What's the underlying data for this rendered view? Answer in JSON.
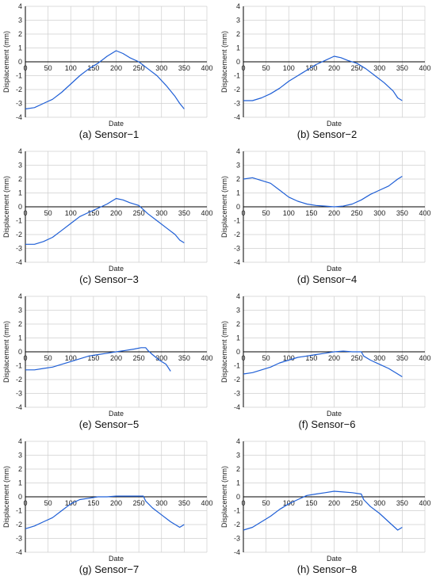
{
  "chart_data": [
    {
      "type": "line",
      "caption": "(a) Sensor−1",
      "xlabel": "Date",
      "ylabel": "Displacement (mm)",
      "xlim": [
        0,
        400
      ],
      "ylim": [
        -4,
        4
      ],
      "xticks": [
        0,
        50,
        100,
        150,
        200,
        250,
        300,
        350,
        400
      ],
      "yticks": [
        4,
        3,
        2,
        1,
        0,
        -1,
        -2,
        -3,
        -4
      ],
      "grid": true,
      "series": [
        {
          "x": [
            0,
            20,
            40,
            60,
            80,
            100,
            120,
            140,
            160,
            180,
            200,
            215,
            230,
            250,
            270,
            290,
            310,
            330,
            340,
            350
          ],
          "y": [
            -3.4,
            -3.3,
            -3.0,
            -2.7,
            -2.2,
            -1.6,
            -1.0,
            -0.5,
            -0.1,
            0.4,
            0.8,
            0.6,
            0.3,
            0.0,
            -0.5,
            -1.0,
            -1.7,
            -2.5,
            -3.0,
            -3.4
          ]
        }
      ]
    },
    {
      "type": "line",
      "caption": "(b) Sensor−2",
      "xlabel": "Date",
      "ylabel": "Displacement (mm)",
      "xlim": [
        0,
        400
      ],
      "ylim": [
        -4,
        4
      ],
      "xticks": [
        0,
        50,
        100,
        150,
        200,
        250,
        300,
        350,
        400
      ],
      "yticks": [
        4,
        3,
        2,
        1,
        0,
        -1,
        -2,
        -3,
        -4
      ],
      "grid": true,
      "series": [
        {
          "x": [
            0,
            20,
            40,
            60,
            80,
            100,
            120,
            140,
            160,
            180,
            200,
            215,
            230,
            250,
            270,
            290,
            310,
            330,
            340,
            350
          ],
          "y": [
            -2.8,
            -2.8,
            -2.6,
            -2.3,
            -1.9,
            -1.4,
            -1.0,
            -0.6,
            -0.2,
            0.1,
            0.4,
            0.3,
            0.1,
            -0.1,
            -0.5,
            -1.0,
            -1.5,
            -2.1,
            -2.6,
            -2.8
          ]
        }
      ]
    },
    {
      "type": "line",
      "caption": "(c) Sensor−3",
      "xlabel": "Date",
      "ylabel": "Displacement (mm)",
      "xlim": [
        0,
        400
      ],
      "ylim": [
        -4,
        4
      ],
      "xticks": [
        0,
        50,
        100,
        150,
        200,
        250,
        300,
        350,
        400
      ],
      "yticks": [
        4,
        3,
        2,
        1,
        0,
        -1,
        -2,
        -3,
        -4
      ],
      "grid": true,
      "series": [
        {
          "x": [
            0,
            20,
            40,
            60,
            80,
            100,
            120,
            140,
            160,
            180,
            200,
            215,
            230,
            250,
            270,
            290,
            310,
            330,
            340,
            350
          ],
          "y": [
            -2.7,
            -2.7,
            -2.5,
            -2.2,
            -1.7,
            -1.2,
            -0.7,
            -0.4,
            -0.1,
            0.2,
            0.6,
            0.5,
            0.3,
            0.1,
            -0.5,
            -1.0,
            -1.5,
            -2.0,
            -2.4,
            -2.6
          ]
        }
      ]
    },
    {
      "type": "line",
      "caption": "(d) Sensor−4",
      "xlabel": "Date",
      "ylabel": "Displacement (mm)",
      "xlim": [
        0,
        400
      ],
      "ylim": [
        -4,
        4
      ],
      "xticks": [
        0,
        50,
        100,
        150,
        200,
        250,
        300,
        350,
        400
      ],
      "yticks": [
        4,
        3,
        2,
        1,
        0,
        -1,
        -2,
        -3,
        -4
      ],
      "grid": true,
      "series": [
        {
          "x": [
            0,
            20,
            40,
            60,
            80,
            100,
            120,
            140,
            160,
            180,
            200,
            220,
            240,
            260,
            280,
            300,
            320,
            340,
            350
          ],
          "y": [
            2.0,
            2.1,
            1.9,
            1.7,
            1.2,
            0.7,
            0.4,
            0.2,
            0.1,
            0.05,
            0.0,
            0.05,
            0.2,
            0.5,
            0.9,
            1.2,
            1.5,
            2.0,
            2.2
          ]
        }
      ]
    },
    {
      "type": "line",
      "caption": "(e) Sensor−5",
      "xlabel": "Date",
      "ylabel": "Displacement (mm)",
      "xlim": [
        0,
        400
      ],
      "ylim": [
        -4,
        4
      ],
      "xticks": [
        0,
        50,
        100,
        150,
        200,
        250,
        300,
        350,
        400
      ],
      "yticks": [
        4,
        3,
        2,
        1,
        0,
        -1,
        -2,
        -3,
        -4
      ],
      "grid": true,
      "series": [
        {
          "x": [
            0,
            20,
            40,
            60,
            80,
            100,
            120,
            140,
            160,
            180,
            200,
            220,
            240,
            255,
            265,
            270,
            280,
            295,
            310,
            320
          ],
          "y": [
            -1.3,
            -1.3,
            -1.2,
            -1.1,
            -0.9,
            -0.7,
            -0.5,
            -0.3,
            -0.2,
            -0.1,
            0.0,
            0.1,
            0.2,
            0.3,
            0.3,
            0.1,
            -0.2,
            -0.6,
            -0.9,
            -1.4
          ]
        }
      ]
    },
    {
      "type": "line",
      "caption": "(f) Sensor−6",
      "xlabel": "Date",
      "ylabel": "Displacement (mm)",
      "xlim": [
        0,
        400
      ],
      "ylim": [
        -4,
        4
      ],
      "xticks": [
        0,
        50,
        100,
        150,
        200,
        250,
        300,
        350,
        400
      ],
      "yticks": [
        4,
        3,
        2,
        1,
        0,
        -1,
        -2,
        -3,
        -4
      ],
      "grid": true,
      "series": [
        {
          "x": [
            0,
            20,
            40,
            60,
            80,
            100,
            120,
            140,
            160,
            180,
            200,
            220,
            240,
            260,
            265,
            280,
            300,
            320,
            340,
            350
          ],
          "y": [
            -1.6,
            -1.5,
            -1.3,
            -1.1,
            -0.8,
            -0.6,
            -0.4,
            -0.3,
            -0.2,
            -0.1,
            0.0,
            0.05,
            0.0,
            0.0,
            -0.3,
            -0.6,
            -0.9,
            -1.2,
            -1.6,
            -1.8
          ]
        }
      ]
    },
    {
      "type": "line",
      "caption": "(g) Sensor−7",
      "xlabel": "Date",
      "ylabel": "Displacement (mm)",
      "xlim": [
        0,
        400
      ],
      "ylim": [
        -4,
        4
      ],
      "xticks": [
        0,
        50,
        100,
        150,
        200,
        250,
        300,
        350,
        400
      ],
      "yticks": [
        4,
        3,
        2,
        1,
        0,
        -1,
        -2,
        -3,
        -4
      ],
      "grid": true,
      "series": [
        {
          "x": [
            0,
            20,
            40,
            60,
            80,
            100,
            120,
            140,
            160,
            180,
            200,
            220,
            240,
            260,
            265,
            280,
            300,
            320,
            340,
            350
          ],
          "y": [
            -2.3,
            -2.1,
            -1.8,
            -1.5,
            -1.0,
            -0.5,
            -0.2,
            -0.1,
            0.0,
            0.0,
            0.05,
            0.05,
            0.05,
            0.05,
            -0.3,
            -0.8,
            -1.3,
            -1.8,
            -2.2,
            -2.0
          ]
        }
      ]
    },
    {
      "type": "line",
      "caption": "(h) Sensor−8",
      "xlabel": "Date",
      "ylabel": "Displacement (mm)",
      "xlim": [
        0,
        400
      ],
      "ylim": [
        -4,
        4
      ],
      "xticks": [
        0,
        50,
        100,
        150,
        200,
        250,
        300,
        350,
        400
      ],
      "yticks": [
        4,
        3,
        2,
        1,
        0,
        -1,
        -2,
        -3,
        -4
      ],
      "grid": true,
      "series": [
        {
          "x": [
            0,
            20,
            40,
            60,
            80,
            100,
            120,
            140,
            160,
            180,
            200,
            220,
            240,
            260,
            265,
            280,
            300,
            320,
            340,
            350
          ],
          "y": [
            -2.4,
            -2.2,
            -1.8,
            -1.4,
            -0.9,
            -0.5,
            -0.2,
            0.1,
            0.2,
            0.3,
            0.4,
            0.35,
            0.3,
            0.2,
            -0.2,
            -0.7,
            -1.2,
            -1.8,
            -2.4,
            -2.2
          ]
        }
      ]
    }
  ],
  "style": {
    "line_color": "#1f5fd6",
    "grid_color": "#cfcfcf",
    "axis_color": "#000000"
  }
}
